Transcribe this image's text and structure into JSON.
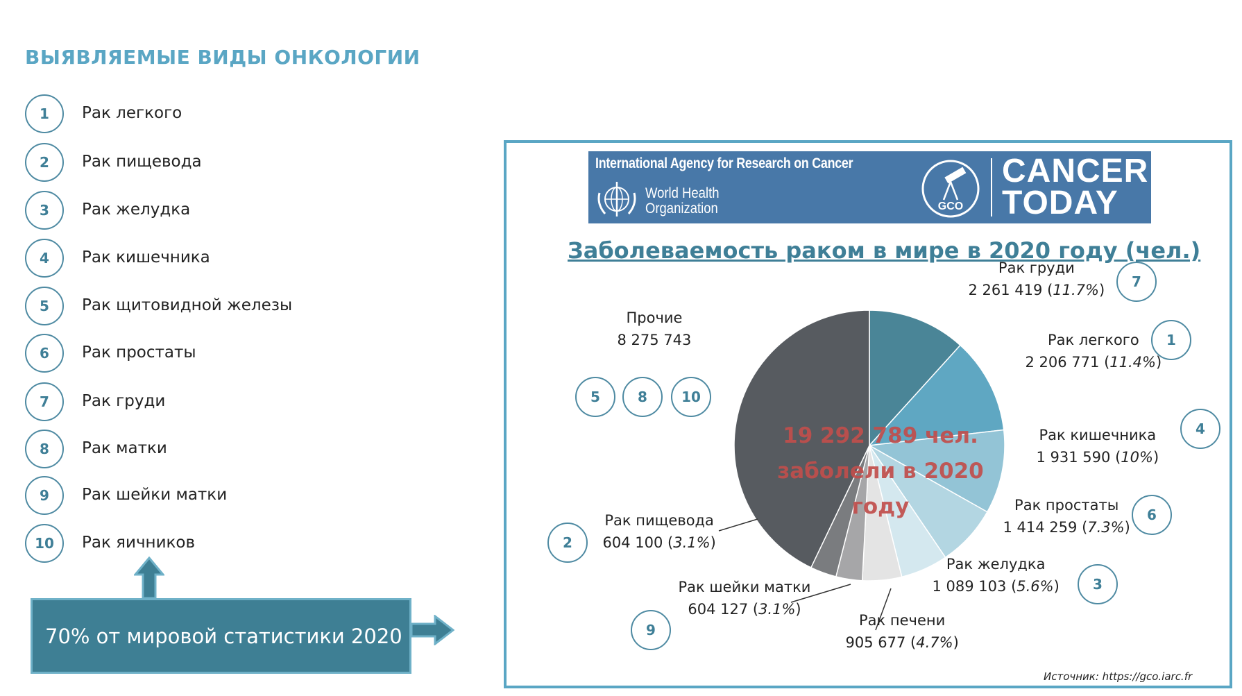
{
  "title": "ВЫЯВЛЯЕМЫЕ ВИДЫ ОНКОЛОГИИ",
  "list": [
    {
      "num": "1",
      "label": "Рак легкого"
    },
    {
      "num": "2",
      "label": "Рак пищевода"
    },
    {
      "num": "3",
      "label": "Рак желудка"
    },
    {
      "num": "4",
      "label": "Рак кишечника"
    },
    {
      "num": "5",
      "label": "Рак щитовидной железы"
    },
    {
      "num": "6",
      "label": "Рак простаты"
    },
    {
      "num": "7",
      "label": "Рак груди"
    },
    {
      "num": "8",
      "label": "Рак матки"
    },
    {
      "num": "9",
      "label": "Рак шейки матки"
    },
    {
      "num": "10",
      "label": "Рак яичников"
    }
  ],
  "stat_box": "70% от мировой статистики  2020",
  "banner": {
    "iarc": "International Agency for Research on Cancer",
    "who_line1": "World Health",
    "who_line2": "Organization",
    "gco": "GCO",
    "ct_line1": "CANCER",
    "ct_line2": "TODAY"
  },
  "source": "Источник: https://gco.iarc.fr",
  "colors": {
    "accent": "#5aa6c4",
    "dark_teal": "#3e7f94",
    "banner": "#4878a8",
    "center_text": "#c14e4c"
  },
  "chart_data": {
    "type": "pie",
    "title": "Заболеваемость раком в мире в 2020 году (чел.)",
    "center_text": [
      "19 292 789 чел.",
      "заболели в 2020",
      "году"
    ],
    "slices": [
      {
        "name": "Рак груди",
        "value": 2261419,
        "value_text": "2 261 419",
        "pct_text": "11.7%",
        "num": "7",
        "color": "#4a8597"
      },
      {
        "name": "Рак легкого",
        "value": 2206771,
        "value_text": "2 206 771",
        "pct_text": "11.4%",
        "num": "1",
        "color": "#5fa7c2"
      },
      {
        "name": "Рак кишечника",
        "value": 1931590,
        "value_text": "1 931 590",
        "pct_text": "10%",
        "num": "4",
        "color": "#93c4d6"
      },
      {
        "name": "Рак простаты",
        "value": 1414259,
        "value_text": "1 414 259",
        "pct_text": "7.3%",
        "num": "6",
        "color": "#b3d6e2"
      },
      {
        "name": "Рак желудка",
        "value": 1089103,
        "value_text": "1 089 103",
        "pct_text": "5.6%",
        "num": "3",
        "color": "#d4e8ef"
      },
      {
        "name": "Рак печени",
        "value": 905677,
        "value_text": "905 677",
        "pct_text": "4.7%",
        "num": "",
        "color": "#e4e4e4"
      },
      {
        "name": "Рак шейки матки",
        "value": 604127,
        "value_text": "604 127",
        "pct_text": "3.1%",
        "num": "9",
        "color": "#a6a6a8"
      },
      {
        "name": "Рак пищевода",
        "value": 604100,
        "value_text": "604 100",
        "pct_text": "3.1%",
        "num": "2",
        "color": "#7a7c7f"
      },
      {
        "name": "Прочие",
        "value": 8275743,
        "value_text": "8 275 743",
        "pct_text": "",
        "nums": [
          "5",
          "8",
          "10"
        ],
        "color": "#575b60"
      }
    ]
  }
}
